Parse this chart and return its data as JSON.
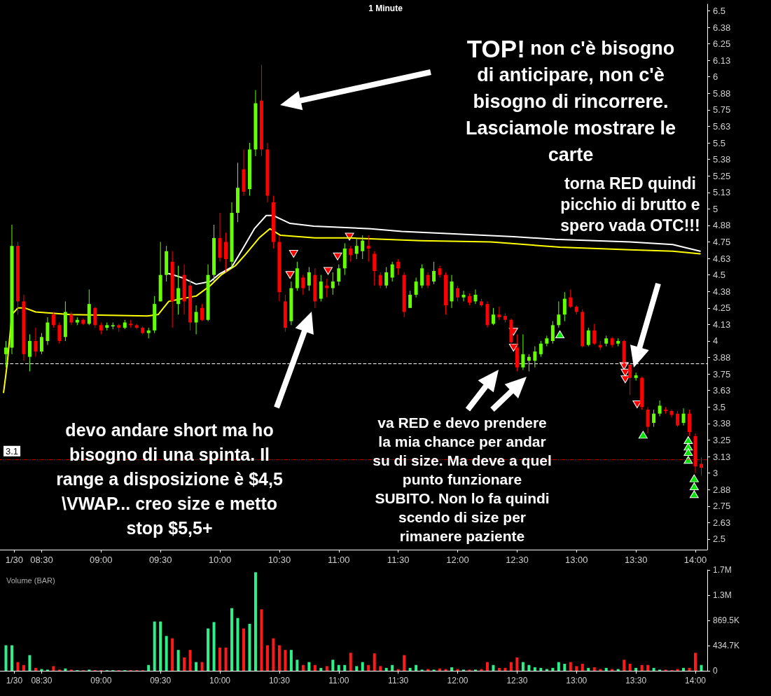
{
  "chart_data": [
    {
      "type": "candlestick",
      "title": "1 Minute",
      "xlim": [
        8.15,
        14.1
      ],
      "xticks": [
        {
          "value": 8.27,
          "label": "1/30"
        },
        {
          "value": 8.5,
          "label": "08:30"
        },
        {
          "value": 9,
          "label": "09:00"
        },
        {
          "value": 9.5,
          "label": "09:30"
        },
        {
          "value": 10,
          "label": "10:00"
        },
        {
          "value": 10.5,
          "label": "10:30"
        },
        {
          "value": 11,
          "label": "11:00"
        },
        {
          "value": 11.5,
          "label": "11:30"
        },
        {
          "value": 12,
          "label": "12:00"
        },
        {
          "value": 12.5,
          "label": "12:30"
        },
        {
          "value": 13,
          "label": "13:00"
        },
        {
          "value": 13.5,
          "label": "13:30"
        },
        {
          "value": 14,
          "label": "14:00"
        }
      ],
      "ylim": [
        2.42,
        6.55
      ],
      "yticks": [
        2.5,
        {
          "value": 2.625,
          "label": "2.63"
        },
        2.75,
        {
          "value": 2.875,
          "label": "2.88"
        },
        3,
        {
          "value": 3.125,
          "label": "3.13"
        },
        3.25,
        {
          "value": 3.375,
          "label": "3.38"
        },
        3.5,
        {
          "value": 3.625,
          "label": "3.63"
        },
        3.75,
        {
          "value": 3.875,
          "label": "3.88"
        },
        4,
        {
          "value": 4.125,
          "label": "4.13"
        },
        4.25,
        {
          "value": 4.375,
          "label": "4.38"
        },
        4.5,
        {
          "value": 4.625,
          "label": "4.63"
        },
        4.75,
        {
          "value": 4.875,
          "label": "4.88"
        },
        5,
        {
          "value": 5.125,
          "label": "5.13"
        },
        5.25,
        {
          "value": 5.375,
          "label": "5.38"
        },
        5.5,
        {
          "value": 5.625,
          "label": "5.63"
        },
        5.75,
        {
          "value": 5.875,
          "label": "5.88"
        },
        6,
        {
          "value": 6.125,
          "label": "6.13"
        },
        6.25,
        {
          "value": 6.375,
          "label": "6.38"
        },
        6.5
      ],
      "ref_lines": [
        {
          "axis": "y",
          "value": 3.83,
          "color": "#ffffff",
          "line_style": "dashed"
        },
        {
          "axis": "y",
          "value": 3.1,
          "label": "3.1",
          "color": "#ff0000",
          "line_style": "dotted"
        }
      ],
      "annotations": [
        "TOP!",
        "non c'è bisogno\ndi anticipare, non c'è\nbisogno di rincorrere.\nLasciamole mostrare le\ncarte",
        "torna RED quindi\npicchio di brutto e\nspero vada OTC!!!",
        "devo andare short ma ho\nbisogno di una spinta. Il\nrange a disposizione è $4,5\n\\VWAP... creo size e metto\nstop $5,5+",
        "va RED e devo prendere\nla mia chance per andar\nsu di size. Ma deve a quel\npunto funzionare\nSUBITO. Non lo fa quindi\nscendo di size per\nrimanere paziente"
      ],
      "series": [
        {
          "type": "line",
          "color": "#ffff00",
          "x": [
            8.18,
            8.21,
            8.25,
            8.3,
            8.36,
            8.45,
            8.74,
            9.39,
            9.48,
            9.57,
            9.68,
            9.8,
            9.92,
            10.01,
            10.13,
            10.21,
            10.33,
            10.42,
            10.51,
            10.8,
            11.1,
            11.69,
            12.28,
            12.86,
            13.45,
            13.81,
            14.04
          ],
          "values": [
            3.61,
            3.82,
            4.2,
            4.25,
            4.25,
            4.22,
            4.2,
            4.19,
            4.2,
            4.3,
            4.32,
            4.34,
            4.42,
            4.5,
            4.57,
            4.65,
            4.78,
            4.85,
            4.8,
            4.78,
            4.78,
            4.76,
            4.75,
            4.71,
            4.69,
            4.68,
            4.66
          ]
        },
        {
          "type": "line",
          "color": "#ffffff",
          "x": [
            9.57,
            9.68,
            9.8,
            9.92,
            10,
            10.1,
            10.2,
            10.29,
            10.39,
            10.45,
            10.59,
            10.79,
            11.27,
            11.53,
            12.47,
            12.82,
            13.45,
            13.81,
            14.04
          ],
          "values": [
            4.51,
            4.48,
            4.43,
            4.45,
            4.51,
            4.56,
            4.71,
            4.85,
            4.95,
            4.95,
            4.89,
            4.87,
            4.85,
            4.83,
            4.79,
            4.77,
            4.75,
            4.73,
            4.68
          ]
        },
        {
          "type": "scatter",
          "marker": "triangle-down",
          "color": "#ff0000",
          "x": [
            10.59,
            10.62,
            10.91,
            10.99,
            11.09,
            12.47,
            12.47,
            13.4,
            13.41,
            13.41,
            13.51
          ],
          "values": [
            4.5,
            4.66,
            4.53,
            4.64,
            4.79,
            4.07,
            3.95,
            3.81,
            3.76,
            3.71,
            3.52
          ]
        },
        {
          "type": "scatter",
          "marker": "triangle",
          "color": "#00e600",
          "x": [
            12.86,
            13.56,
            13.94,
            13.94,
            13.94,
            13.94,
            13.99,
            13.99,
            13.99
          ],
          "values": [
            4.05,
            3.29,
            3.25,
            3.2,
            3.16,
            3.1,
            2.96,
            2.9,
            2.84
          ]
        },
        {
          "type": "candlestick",
          "colors": [
            "#66ff00",
            "#66ff00",
            "#ff0000",
            "#ff0000",
            "#66ff00",
            "#ff0000",
            "#66ff00",
            "#66ff00",
            "#ff0000",
            "#ff0000",
            "#66ff00",
            "#ff0000",
            "#66ff00",
            "#ff0000",
            "#66ff00",
            "#ff0000",
            "#ff0000",
            "#66ff00",
            "#66ff00",
            "#ff0000",
            "#66ff00",
            "#ff0000",
            "#ff0000",
            "#ff0000",
            "#66ff00",
            "#66ff00",
            "#66ff00",
            "#66ff00",
            "#ff0000",
            "#66ff00",
            "#ff0000",
            "#ff0000",
            "#66ff00",
            "#ff0000",
            "#66ff00",
            "#66ff00",
            "#ff0000",
            "#ff0000",
            "#66ff00",
            "#66ff00",
            "#ff0000",
            "#66ff00",
            "#66ff00",
            "#ff0000",
            "#ff0000",
            "#ff0000",
            "#ff0000",
            "#ff0000",
            "#66ff00",
            "#66ff00",
            "#ff0000",
            "#66ff00",
            "#ff0000",
            "#66ff00",
            "#ff0000",
            "#66ff00",
            "#66ff00",
            "#66ff00",
            "#ff0000",
            "#66ff00",
            "#66ff00",
            "#ff0000",
            "#ff0000",
            "#ff0000",
            "#66ff00",
            "#66ff00",
            "#ff0000",
            "#ff0000",
            "#66ff00",
            "#66ff00",
            "#66ff00",
            "#ff0000",
            "#66ff00",
            "#ff0000",
            "#ff0000",
            "#66ff00",
            "#ff0000",
            "#66ff00",
            "#ff0000",
            "#66ff00",
            "#ff0000",
            "#ff0000",
            "#66ff00",
            "#ff0000",
            "#ff0000",
            "#ff0000",
            "#ff0000",
            "#66ff00",
            "#66ff00",
            "#66ff00",
            "#66ff00",
            "#66ff00",
            "#66ff00",
            "#66ff00",
            "#66ff00",
            "#ff0000",
            "#ff0000",
            "#ff0000",
            "#66ff00",
            "#ff0000",
            "#ff0000",
            "#66ff00",
            "#ff0000",
            "#66ff00",
            "#ff0000",
            "#ff0000",
            "#66ff00",
            "#ff0000",
            "#ff0000",
            "#66ff00",
            "#66ff00",
            "#ff0000",
            "#ff0000",
            "#ff0000",
            "#66ff00",
            "#ff0000",
            "#ff0000",
            "#ff0000"
          ],
          "x": [
            8.2,
            8.25,
            8.3,
            8.35,
            8.4,
            8.45,
            8.5,
            8.55,
            8.6,
            8.65,
            8.7,
            8.75,
            8.8,
            8.85,
            8.9,
            8.95,
            9,
            9.05,
            9.1,
            9.15,
            9.2,
            9.25,
            9.3,
            9.35,
            9.4,
            9.45,
            9.5,
            9.55,
            9.6,
            9.65,
            9.7,
            9.75,
            9.8,
            9.85,
            9.9,
            9.95,
            10,
            10.05,
            10.1,
            10.15,
            10.2,
            10.25,
            10.3,
            10.35,
            10.4,
            10.45,
            10.5,
            10.55,
            10.6,
            10.65,
            10.7,
            10.75,
            10.8,
            10.85,
            10.9,
            10.95,
            11,
            11.05,
            11.1,
            11.15,
            11.2,
            11.25,
            11.3,
            11.35,
            11.4,
            11.45,
            11.5,
            11.55,
            11.6,
            11.65,
            11.7,
            11.75,
            11.8,
            11.85,
            11.9,
            11.95,
            12,
            12.05,
            12.1,
            12.15,
            12.2,
            12.25,
            12.3,
            12.35,
            12.4,
            12.45,
            12.5,
            12.55,
            12.6,
            12.65,
            12.7,
            12.75,
            12.8,
            12.85,
            12.9,
            12.95,
            13,
            13.05,
            13.1,
            13.15,
            13.2,
            13.25,
            13.3,
            13.35,
            13.4,
            13.45,
            13.5,
            13.55,
            13.6,
            13.65,
            13.7,
            13.75,
            13.8,
            13.85,
            13.9,
            13.95,
            14,
            14.05
          ],
          "ohlc": [
            [
              3.9,
              4.0,
              3.8,
              3.95
            ],
            [
              3.95,
              4.88,
              3.9,
              4.72
            ],
            [
              4.72,
              4.75,
              4.2,
              4.3
            ],
            [
              4.3,
              4.35,
              3.85,
              3.9
            ],
            [
              3.88,
              4.05,
              3.77,
              4.0
            ],
            [
              4.0,
              4.1,
              3.88,
              3.92
            ],
            [
              3.92,
              4.06,
              3.9,
              4.03
            ],
            [
              4.0,
              4.18,
              3.97,
              4.14
            ],
            [
              4.2,
              4.22,
              4.1,
              4.12
            ],
            [
              4.12,
              4.14,
              3.98,
              4.0
            ],
            [
              4.03,
              4.3,
              4.0,
              4.22
            ],
            [
              4.2,
              4.22,
              4.12,
              4.14
            ],
            [
              4.14,
              4.18,
              4.12,
              4.16
            ],
            [
              4.16,
              4.17,
              4.12,
              4.13
            ],
            [
              4.13,
              4.39,
              4.12,
              4.28
            ],
            [
              4.25,
              4.26,
              4.1,
              4.12
            ],
            [
              4.12,
              4.14,
              4.05,
              4.08
            ],
            [
              4.1,
              4.14,
              4.08,
              4.12
            ],
            [
              4.11,
              4.14,
              4.09,
              4.12
            ],
            [
              4.12,
              4.13,
              4.07,
              4.1
            ],
            [
              4.1,
              4.16,
              4.09,
              4.14
            ],
            [
              4.13,
              4.16,
              4.1,
              4.12
            ],
            [
              4.12,
              4.13,
              4.09,
              4.1
            ],
            [
              4.1,
              4.11,
              4.05,
              4.06
            ],
            [
              4.06,
              4.1,
              4.02,
              4.08
            ],
            [
              4.08,
              4.34,
              4.06,
              4.28
            ],
            [
              4.3,
              4.75,
              4.3,
              4.5
            ],
            [
              4.5,
              4.72,
              4.45,
              4.68
            ],
            [
              4.6,
              4.68,
              4.1,
              4.3
            ],
            [
              4.28,
              4.57,
              4.2,
              4.4
            ],
            [
              4.5,
              4.58,
              4.2,
              4.3
            ],
            [
              4.42,
              4.47,
              4.08,
              4.14
            ],
            [
              4.14,
              4.27,
              4.05,
              4.22
            ],
            [
              4.25,
              4.28,
              4.15,
              4.16
            ],
            [
              4.16,
              4.58,
              4.15,
              4.5
            ],
            [
              4.5,
              4.88,
              4.45,
              4.78
            ],
            [
              4.78,
              4.97,
              4.6,
              4.63
            ],
            [
              4.75,
              4.82,
              4.52,
              4.62
            ],
            [
              4.6,
              5.05,
              4.55,
              4.97
            ],
            [
              4.97,
              5.35,
              4.9,
              5.16
            ],
            [
              5.3,
              5.45,
              5.1,
              5.13
            ],
            [
              5.15,
              5.5,
              5.1,
              5.45
            ],
            [
              5.45,
              5.9,
              5.4,
              5.8
            ],
            [
              5.82,
              6.09,
              5.4,
              5.45
            ],
            [
              5.45,
              5.5,
              5.05,
              5.1
            ],
            [
              5.05,
              5.1,
              4.7,
              4.75
            ],
            [
              4.75,
              4.8,
              4.3,
              4.37
            ],
            [
              4.3,
              4.35,
              4.07,
              4.1
            ],
            [
              4.15,
              4.45,
              4.12,
              4.4
            ],
            [
              4.4,
              4.6,
              4.38,
              4.55
            ],
            [
              4.48,
              4.5,
              4.35,
              4.4
            ],
            [
              4.42,
              4.56,
              4.38,
              4.52
            ],
            [
              4.5,
              4.55,
              4.25,
              4.3
            ],
            [
              4.32,
              4.5,
              4.3,
              4.45
            ],
            [
              4.42,
              4.47,
              4.33,
              4.4
            ],
            [
              4.4,
              4.52,
              4.35,
              4.45
            ],
            [
              4.45,
              4.58,
              4.42,
              4.55
            ],
            [
              4.55,
              4.74,
              4.5,
              4.7
            ],
            [
              4.7,
              4.72,
              4.6,
              4.65
            ],
            [
              4.66,
              4.78,
              4.62,
              4.72
            ],
            [
              4.68,
              4.8,
              4.62,
              4.76
            ],
            [
              4.72,
              4.8,
              4.6,
              4.7
            ],
            [
              4.66,
              4.68,
              4.42,
              4.53
            ],
            [
              4.5,
              4.52,
              4.4,
              4.42
            ],
            [
              4.42,
              4.56,
              4.4,
              4.52
            ],
            [
              4.48,
              4.6,
              4.45,
              4.58
            ],
            [
              4.6,
              4.62,
              4.5,
              4.55
            ],
            [
              4.5,
              4.52,
              4.18,
              4.22
            ],
            [
              4.25,
              4.38,
              4.25,
              4.35
            ],
            [
              4.35,
              4.48,
              4.33,
              4.45
            ],
            [
              4.42,
              4.58,
              4.4,
              4.55
            ],
            [
              4.5,
              4.52,
              4.4,
              4.42
            ],
            [
              4.45,
              4.6,
              4.43,
              4.53
            ],
            [
              4.55,
              4.57,
              4.48,
              4.5
            ],
            [
              4.5,
              4.52,
              4.2,
              4.27
            ],
            [
              4.3,
              4.5,
              4.25,
              4.45
            ],
            [
              4.4,
              4.42,
              4.3,
              4.33
            ],
            [
              4.33,
              4.38,
              4.3,
              4.35
            ],
            [
              4.34,
              4.36,
              4.27,
              4.29
            ],
            [
              4.3,
              4.39,
              4.28,
              4.35
            ],
            [
              4.3,
              4.32,
              4.26,
              4.27
            ],
            [
              4.28,
              4.3,
              4.1,
              4.12
            ],
            [
              4.13,
              4.25,
              4.12,
              4.2
            ],
            [
              4.2,
              4.26,
              4.16,
              4.18
            ],
            [
              4.19,
              4.21,
              4.14,
              4.16
            ],
            [
              4.16,
              4.17,
              3.97,
              3.99
            ],
            [
              3.95,
              4.05,
              3.77,
              3.8
            ],
            [
              3.8,
              4.05,
              3.78,
              3.9
            ],
            [
              3.85,
              3.9,
              3.77,
              3.88
            ],
            [
              3.85,
              3.96,
              3.8,
              3.92
            ],
            [
              3.9,
              4.0,
              3.88,
              3.98
            ],
            [
              3.98,
              4.04,
              3.96,
              4.02
            ],
            [
              4.0,
              4.15,
              3.98,
              4.12
            ],
            [
              4.12,
              4.3,
              4.1,
              4.2
            ],
            [
              4.2,
              4.37,
              4.15,
              4.32
            ],
            [
              4.33,
              4.39,
              4.25,
              4.26
            ],
            [
              4.26,
              4.27,
              4.2,
              4.22
            ],
            [
              4.22,
              4.24,
              3.95,
              3.96
            ],
            [
              3.97,
              4.1,
              3.96,
              4.08
            ],
            [
              4.08,
              4.13,
              3.97,
              3.98
            ],
            [
              3.97,
              4.0,
              3.93,
              3.95
            ],
            [
              3.98,
              4.04,
              3.96,
              4.02
            ],
            [
              4.02,
              4.03,
              3.95,
              3.97
            ],
            [
              3.98,
              4.02,
              3.96,
              4.0
            ],
            [
              4.0,
              4.01,
              3.82,
              3.84
            ],
            [
              3.82,
              3.83,
              3.59,
              3.72
            ],
            [
              3.72,
              3.76,
              3.7,
              3.74
            ],
            [
              3.72,
              3.73,
              3.48,
              3.5
            ],
            [
              3.48,
              3.5,
              3.3,
              3.35
            ],
            [
              3.38,
              3.48,
              3.35,
              3.45
            ],
            [
              3.45,
              3.55,
              3.43,
              3.51
            ],
            [
              3.48,
              3.5,
              3.45,
              3.47
            ],
            [
              3.47,
              3.48,
              3.42,
              3.44
            ],
            [
              3.45,
              3.47,
              3.35,
              3.36
            ],
            [
              3.38,
              3.49,
              3.36,
              3.45
            ],
            [
              3.45,
              3.48,
              3.28,
              3.31
            ],
            [
              3.28,
              3.3,
              3.0,
              3.05
            ],
            [
              3.07,
              3.12,
              2.98,
              3.04
            ]
          ]
        }
      ]
    },
    {
      "type": "bar",
      "title": "Volume (BAR)",
      "xlim": [
        8.15,
        14.1
      ],
      "xticks": [
        {
          "value": 8.27,
          "label": "1/30"
        },
        {
          "value": 8.5,
          "label": "08:30"
        },
        {
          "value": 9,
          "label": "09:00"
        },
        {
          "value": 9.5,
          "label": "09:30"
        },
        {
          "value": 10,
          "label": "10:00"
        },
        {
          "value": 10.5,
          "label": "10:30"
        },
        {
          "value": 11,
          "label": "11:00"
        },
        {
          "value": 11.5,
          "label": "11:30"
        },
        {
          "value": 12,
          "label": "12:00"
        },
        {
          "value": 12.5,
          "label": "12:30"
        },
        {
          "value": 13,
          "label": "13:00"
        },
        {
          "value": 13.5,
          "label": "13:30"
        },
        {
          "value": 14,
          "label": "14:00"
        }
      ],
      "ylim": [
        0,
        1738900
      ],
      "yticks": [
        0,
        {
          "value": 434700,
          "label": "434.7K"
        },
        {
          "value": 869500,
          "label": "869.5K"
        },
        {
          "value": 1304200,
          "label": "1.3M"
        },
        {
          "value": 1738900,
          "label": "1.7M"
        }
      ],
      "x": [
        8.2,
        8.25,
        8.3,
        8.35,
        8.4,
        8.45,
        8.5,
        8.55,
        8.6,
        8.65,
        8.7,
        8.75,
        8.8,
        8.85,
        8.9,
        8.95,
        9,
        9.05,
        9.1,
        9.15,
        9.2,
        9.25,
        9.3,
        9.35,
        9.4,
        9.45,
        9.5,
        9.55,
        9.6,
        9.65,
        9.7,
        9.75,
        9.8,
        9.85,
        9.9,
        9.95,
        10,
        10.05,
        10.1,
        10.15,
        10.2,
        10.25,
        10.3,
        10.35,
        10.4,
        10.45,
        10.5,
        10.55,
        10.6,
        10.65,
        10.7,
        10.75,
        10.8,
        10.85,
        10.9,
        10.95,
        11,
        11.05,
        11.1,
        11.15,
        11.2,
        11.25,
        11.3,
        11.35,
        11.4,
        11.45,
        11.5,
        11.55,
        11.6,
        11.65,
        11.7,
        11.75,
        11.8,
        11.85,
        11.9,
        11.95,
        12,
        12.05,
        12.1,
        12.15,
        12.2,
        12.25,
        12.3,
        12.35,
        12.4,
        12.45,
        12.5,
        12.55,
        12.6,
        12.65,
        12.7,
        12.75,
        12.8,
        12.85,
        12.9,
        12.95,
        13,
        13.05,
        13.1,
        13.15,
        13.2,
        13.25,
        13.3,
        13.35,
        13.4,
        13.45,
        13.5,
        13.55,
        13.6,
        13.65,
        13.7,
        13.75,
        13.8,
        13.85,
        13.9,
        13.95,
        14,
        14.05
      ],
      "values": [
        440000,
        440000,
        150000,
        100000,
        270000,
        50000,
        30000,
        20000,
        80000,
        20000,
        40000,
        20000,
        10000,
        10000,
        20000,
        10000,
        10000,
        10000,
        10000,
        10000,
        10000,
        10000,
        10000,
        10000,
        100000,
        850000,
        850000,
        600000,
        560000,
        360000,
        230000,
        360000,
        150000,
        150000,
        730000,
        840000,
        400000,
        400000,
        1080000,
        910000,
        730000,
        810000,
        1700000,
        1060000,
        440000,
        560000,
        440000,
        360000,
        360000,
        190000,
        100000,
        150000,
        100000,
        50000,
        80000,
        190000,
        100000,
        100000,
        310000,
        80000,
        150000,
        100000,
        300000,
        80000,
        50000,
        100000,
        30000,
        270000,
        50000,
        100000,
        20000,
        30000,
        20000,
        40000,
        30000,
        60000,
        30000,
        20000,
        20000,
        20000,
        30000,
        150000,
        100000,
        50000,
        50000,
        150000,
        230000,
        150000,
        100000,
        60000,
        50000,
        30000,
        50000,
        150000,
        120000,
        150000,
        80000,
        120000,
        50000,
        60000,
        30000,
        50000,
        30000,
        30000,
        190000,
        120000,
        50000,
        100000,
        100000,
        50000,
        20000,
        20000,
        10000,
        30000,
        50000,
        50000,
        310000,
        100000
      ],
      "colors": [
        "#2ef08a",
        "#2ef08a",
        "#ff1a1a",
        "#ff1a1a",
        "#2ef08a",
        "#ff1a1a",
        "#2ef08a",
        "#2ef08a",
        "#ff1a1a",
        "#ff1a1a",
        "#2ef08a",
        "#ff1a1a",
        "#2ef08a",
        "#ff1a1a",
        "#2ef08a",
        "#ff1a1a",
        "#ff1a1a",
        "#2ef08a",
        "#2ef08a",
        "#ff1a1a",
        "#2ef08a",
        "#ff1a1a",
        "#ff1a1a",
        "#ff1a1a",
        "#2ef08a",
        "#2ef08a",
        "#2ef08a",
        "#2ef08a",
        "#ff1a1a",
        "#2ef08a",
        "#ff1a1a",
        "#ff1a1a",
        "#2ef08a",
        "#ff1a1a",
        "#2ef08a",
        "#2ef08a",
        "#ff1a1a",
        "#ff1a1a",
        "#2ef08a",
        "#2ef08a",
        "#ff1a1a",
        "#2ef08a",
        "#2ef08a",
        "#ff1a1a",
        "#ff1a1a",
        "#ff1a1a",
        "#ff1a1a",
        "#ff1a1a",
        "#2ef08a",
        "#2ef08a",
        "#ff1a1a",
        "#2ef08a",
        "#ff1a1a",
        "#2ef08a",
        "#ff1a1a",
        "#2ef08a",
        "#2ef08a",
        "#2ef08a",
        "#ff1a1a",
        "#2ef08a",
        "#2ef08a",
        "#ff1a1a",
        "#ff1a1a",
        "#ff1a1a",
        "#2ef08a",
        "#2ef08a",
        "#ff1a1a",
        "#ff1a1a",
        "#2ef08a",
        "#2ef08a",
        "#2ef08a",
        "#ff1a1a",
        "#2ef08a",
        "#ff1a1a",
        "#ff1a1a",
        "#2ef08a",
        "#ff1a1a",
        "#2ef08a",
        "#ff1a1a",
        "#2ef08a",
        "#ff1a1a",
        "#ff1a1a",
        "#2ef08a",
        "#ff1a1a",
        "#ff1a1a",
        "#ff1a1a",
        "#ff1a1a",
        "#2ef08a",
        "#2ef08a",
        "#2ef08a",
        "#2ef08a",
        "#2ef08a",
        "#2ef08a",
        "#2ef08a",
        "#2ef08a",
        "#ff1a1a",
        "#ff1a1a",
        "#ff1a1a",
        "#2ef08a",
        "#ff1a1a",
        "#ff1a1a",
        "#2ef08a",
        "#ff1a1a",
        "#2ef08a",
        "#ff1a1a",
        "#ff1a1a",
        "#2ef08a",
        "#ff1a1a",
        "#ff1a1a",
        "#2ef08a",
        "#2ef08a",
        "#ff1a1a",
        "#ff1a1a",
        "#ff1a1a",
        "#2ef08a",
        "#ff1a1a",
        "#ff1a1a",
        "#2ef08a"
      ]
    }
  ]
}
